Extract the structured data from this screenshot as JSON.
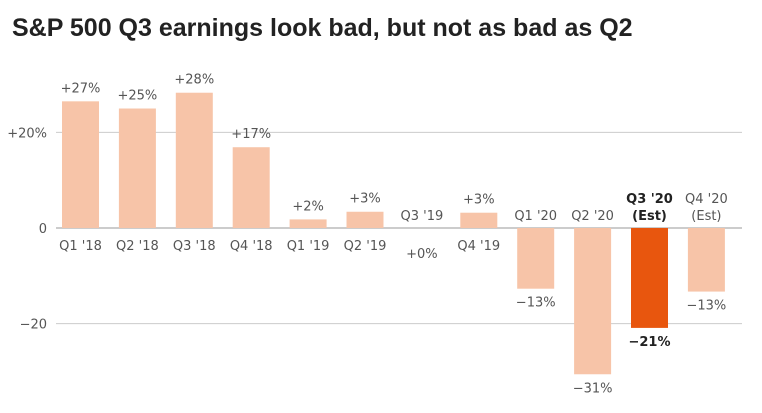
{
  "colors": {
    "bar": "#f7c4a8",
    "highlight": "#e8560e",
    "grid": "#cccccc",
    "text": "#555555",
    "strong_text": "#222222"
  },
  "chart_data": {
    "type": "bar",
    "title": "S&P 500 Q3 earnings look bad, but not as bad as Q2",
    "subtitle": "",
    "xlabel": "",
    "ylabel": "",
    "ylim": [
      -31,
      28
    ],
    "y_ticks": [
      {
        "value": 20,
        "label": "+20%"
      },
      {
        "value": 0,
        "label": "0"
      },
      {
        "value": -20,
        "label": "−20"
      }
    ],
    "grid": true,
    "categories": [
      "Q1 '18",
      "Q2 '18",
      "Q3 '18",
      "Q4 '18",
      "Q1 '19",
      "Q2 '19",
      "Q3 '19",
      "Q4 '19",
      "Q1 '20",
      "Q2 '20",
      "Q3 '20 (Est)",
      "Q4 '20 (Est)"
    ],
    "category_lines": [
      [
        "Q1 '18"
      ],
      [
        "Q2 '18"
      ],
      [
        "Q3 '18"
      ],
      [
        "Q4 '18"
      ],
      [
        "Q1 '19"
      ],
      [
        "Q2 '19"
      ],
      [
        "Q3 '19"
      ],
      [
        "Q4 '19"
      ],
      [
        "Q1 '20"
      ],
      [
        "Q2 '20"
      ],
      [
        "Q3 '20",
        "(Est)"
      ],
      [
        "Q4 '20",
        "(Est)"
      ]
    ],
    "values": [
      26.5,
      25,
      28.3,
      16.9,
      1.8,
      3.4,
      0,
      3.2,
      -12.7,
      -30.6,
      -20.9,
      -13.3
    ],
    "data_labels": [
      "+27%",
      "+25%",
      "+28%",
      "+17%",
      "+2%",
      "+3%",
      "+0%",
      "+3%",
      "−13%",
      "−31%",
      "−21%",
      "−13%"
    ],
    "highlight_index": 10
  }
}
